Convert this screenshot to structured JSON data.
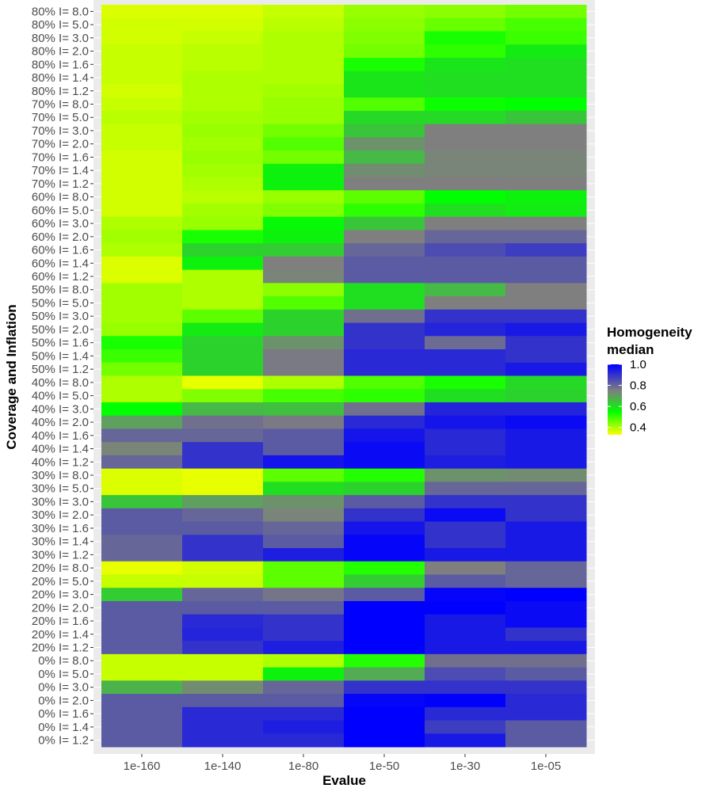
{
  "chart_data": {
    "type": "heatmap",
    "xlabel": "Evalue",
    "ylabel": "Coverage and Inflation",
    "legend": {
      "title_line1": "Homogeneity",
      "title_line2": "median",
      "ticks": [
        1.0,
        0.8,
        0.6,
        0.4
      ],
      "tick_labels": [
        "1.0",
        "0.8",
        "0.6",
        "0.4"
      ],
      "range": [
        0.33,
        1.0
      ],
      "placement": "right"
    },
    "colorscale": [
      {
        "value": 0.33,
        "color": "#ffff00"
      },
      {
        "value": 0.55,
        "color": "#00ff00"
      },
      {
        "value": 0.75,
        "color": "#7f7f7f"
      },
      {
        "value": 1.0,
        "color": "#0000ff"
      }
    ],
    "x": [
      "1e-160",
      "1e-140",
      "1e-80",
      "1e-50",
      "1e-30",
      "1e-05"
    ],
    "y": [
      "80% I= 8.0",
      "80% I= 5.0",
      "80% I= 3.0",
      "80% I= 2.0",
      "80% I= 1.6",
      "80% I= 1.4",
      "80% I= 1.2",
      "70% I= 8.0",
      "70% I= 5.0",
      "70% I= 3.0",
      "70% I= 2.0",
      "70% I= 1.6",
      "70% I= 1.4",
      "70% I= 1.2",
      "60% I= 8.0",
      "60% I= 5.0",
      "60% I= 3.0",
      "60% I= 2.0",
      "60% I= 1.6",
      "60% I= 1.4",
      "60% I= 1.2",
      "50% I= 8.0",
      "50% I= 5.0",
      "50% I= 3.0",
      "50% I= 2.0",
      "50% I= 1.6",
      "50% I= 1.4",
      "50% I= 1.2",
      "40% I= 8.0",
      "40% I= 5.0",
      "40% I= 3.0",
      "40% I= 2.0",
      "40% I= 1.6",
      "40% I= 1.4",
      "40% I= 1.2",
      "30% I= 8.0",
      "30% I= 5.0",
      "30% I= 3.0",
      "30% I= 2.0",
      "30% I= 1.6",
      "30% I= 1.4",
      "30% I= 1.2",
      "20% I= 8.0",
      "20% I= 5.0",
      "20% I= 3.0",
      "20% I= 2.0",
      "20% I= 1.6",
      "20% I= 1.4",
      "20% I= 1.2",
      "0% I= 8.0",
      "0% I= 5.0",
      "0% I= 3.0",
      "0% I= 2.0",
      "0% I= 1.6",
      "0% I= 1.4",
      "0% I= 1.2"
    ],
    "values": [
      [
        0.36,
        0.36,
        0.38,
        0.42,
        0.43,
        0.45
      ],
      [
        0.37,
        0.37,
        0.39,
        0.43,
        0.46,
        0.49
      ],
      [
        0.37,
        0.38,
        0.4,
        0.44,
        0.53,
        0.5
      ],
      [
        0.38,
        0.39,
        0.4,
        0.45,
        0.51,
        0.58
      ],
      [
        0.38,
        0.39,
        0.4,
        0.53,
        0.59,
        0.6
      ],
      [
        0.38,
        0.4,
        0.4,
        0.59,
        0.6,
        0.6
      ],
      [
        0.37,
        0.4,
        0.41,
        0.59,
        0.6,
        0.6
      ],
      [
        0.38,
        0.4,
        0.42,
        0.48,
        0.54,
        0.55
      ],
      [
        0.39,
        0.41,
        0.42,
        0.61,
        0.61,
        0.64
      ],
      [
        0.38,
        0.42,
        0.45,
        0.64,
        0.75,
        0.75
      ],
      [
        0.38,
        0.41,
        0.48,
        0.72,
        0.75,
        0.75
      ],
      [
        0.37,
        0.42,
        0.45,
        0.66,
        0.74,
        0.74
      ],
      [
        0.37,
        0.41,
        0.57,
        0.73,
        0.74,
        0.74
      ],
      [
        0.37,
        0.4,
        0.57,
        0.75,
        0.75,
        0.75
      ],
      [
        0.37,
        0.39,
        0.42,
        0.47,
        0.55,
        0.57
      ],
      [
        0.37,
        0.41,
        0.44,
        0.51,
        0.6,
        0.58
      ],
      [
        0.4,
        0.42,
        0.56,
        0.64,
        0.75,
        0.75
      ],
      [
        0.41,
        0.53,
        0.57,
        0.75,
        0.8,
        0.8
      ],
      [
        0.4,
        0.62,
        0.63,
        0.8,
        0.85,
        0.88
      ],
      [
        0.36,
        0.57,
        0.75,
        0.82,
        0.82,
        0.82
      ],
      [
        0.36,
        0.4,
        0.74,
        0.82,
        0.82,
        0.82
      ],
      [
        0.41,
        0.4,
        0.43,
        0.6,
        0.66,
        0.75
      ],
      [
        0.41,
        0.4,
        0.48,
        0.6,
        0.75,
        0.75
      ],
      [
        0.41,
        0.47,
        0.62,
        0.78,
        0.9,
        0.9
      ],
      [
        0.42,
        0.58,
        0.62,
        0.9,
        0.93,
        0.95
      ],
      [
        0.53,
        0.62,
        0.72,
        0.9,
        0.79,
        0.9
      ],
      [
        0.5,
        0.62,
        0.76,
        0.92,
        0.92,
        0.9
      ],
      [
        0.45,
        0.62,
        0.76,
        0.92,
        0.92,
        0.95
      ],
      [
        0.4,
        0.35,
        0.4,
        0.48,
        0.53,
        0.61
      ],
      [
        0.4,
        0.44,
        0.49,
        0.51,
        0.6,
        0.62
      ],
      [
        0.55,
        0.66,
        0.65,
        0.78,
        0.93,
        0.93
      ],
      [
        0.7,
        0.78,
        0.76,
        0.92,
        0.96,
        0.98
      ],
      [
        0.8,
        0.8,
        0.82,
        0.96,
        0.92,
        0.95
      ],
      [
        0.74,
        0.9,
        0.82,
        0.98,
        0.92,
        0.95
      ],
      [
        0.8,
        0.9,
        0.96,
        0.98,
        0.94,
        0.95
      ],
      [
        0.36,
        0.35,
        0.47,
        0.52,
        0.72,
        0.73
      ],
      [
        0.36,
        0.35,
        0.6,
        0.62,
        0.8,
        0.8
      ],
      [
        0.64,
        0.7,
        0.72,
        0.82,
        0.9,
        0.9
      ],
      [
        0.82,
        0.8,
        0.74,
        0.9,
        0.98,
        0.9
      ],
      [
        0.82,
        0.82,
        0.8,
        0.96,
        0.9,
        0.95
      ],
      [
        0.8,
        0.9,
        0.82,
        0.99,
        0.9,
        0.95
      ],
      [
        0.8,
        0.9,
        0.94,
        0.99,
        0.95,
        0.95
      ],
      [
        0.35,
        0.37,
        0.47,
        0.52,
        0.75,
        0.8
      ],
      [
        0.38,
        0.38,
        0.47,
        0.63,
        0.82,
        0.8
      ],
      [
        0.63,
        0.8,
        0.77,
        0.82,
        0.99,
        1.0
      ],
      [
        0.82,
        0.82,
        0.82,
        1.0,
        1.0,
        0.98
      ],
      [
        0.82,
        0.92,
        0.9,
        1.0,
        0.95,
        0.98
      ],
      [
        0.82,
        0.93,
        0.9,
        1.0,
        0.95,
        0.9
      ],
      [
        0.82,
        0.9,
        0.94,
        1.0,
        0.95,
        0.95
      ],
      [
        0.38,
        0.38,
        0.4,
        0.52,
        0.78,
        0.78
      ],
      [
        0.38,
        0.38,
        0.57,
        0.68,
        0.85,
        0.82
      ],
      [
        0.67,
        0.73,
        0.8,
        0.9,
        0.9,
        0.9
      ],
      [
        0.82,
        0.82,
        0.82,
        0.99,
        1.0,
        0.92
      ],
      [
        0.82,
        0.92,
        0.92,
        1.0,
        0.92,
        0.92
      ],
      [
        0.82,
        0.92,
        0.94,
        1.0,
        0.88,
        0.82
      ],
      [
        0.82,
        0.92,
        0.92,
        1.0,
        0.95,
        0.82
      ]
    ],
    "grid": true
  }
}
